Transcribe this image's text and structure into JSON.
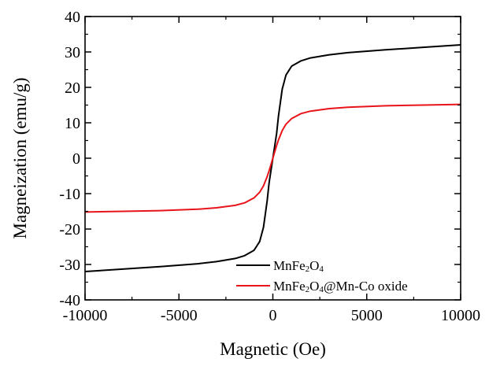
{
  "chart_data": {
    "type": "line",
    "xlabel": "Magnetic (Oe)",
    "ylabel": "Magneization (emu/g)",
    "xlim": [
      -10000,
      10000
    ],
    "ylim": [
      -40,
      40
    ],
    "x_ticks": [
      -10000,
      -5000,
      0,
      5000,
      10000
    ],
    "y_ticks": [
      -40,
      -30,
      -20,
      -10,
      0,
      10,
      20,
      30,
      40
    ],
    "x_tick_labels": [
      "-10000",
      "-5000",
      "0",
      "5000",
      "10000"
    ],
    "y_tick_labels": [
      "-40",
      "-30",
      "-20",
      "-10",
      "0",
      "10",
      "20",
      "30",
      "40"
    ],
    "grid": false,
    "legend_position": "bottom-right",
    "series": [
      {
        "name": "MnFe2O4",
        "legend_parts": [
          {
            "text": "MnFe",
            "sub": false
          },
          {
            "text": "2",
            "sub": true
          },
          {
            "text": "O",
            "sub": false
          },
          {
            "text": "4",
            "sub": true
          }
        ],
        "color": "#000000",
        "x": [
          -10000,
          -8000,
          -6000,
          -4000,
          -3000,
          -2000,
          -1500,
          -1000,
          -700,
          -500,
          -300,
          -200,
          -100,
          0,
          100,
          200,
          300,
          500,
          700,
          1000,
          1500,
          2000,
          3000,
          4000,
          6000,
          8000,
          10000
        ],
        "y": [
          -32,
          -31.3,
          -30.6,
          -29.8,
          -29.2,
          -28.3,
          -27.5,
          -26,
          -23.5,
          -19.5,
          -12,
          -7,
          -3.5,
          0,
          3.5,
          7,
          12,
          19.5,
          23.5,
          26,
          27.5,
          28.3,
          29.2,
          29.8,
          30.6,
          31.3,
          32
        ]
      },
      {
        "name": "MnFe2O4@Mn-Co oxide",
        "legend_parts": [
          {
            "text": "MnFe",
            "sub": false
          },
          {
            "text": "2",
            "sub": true
          },
          {
            "text": "O",
            "sub": false
          },
          {
            "text": "4",
            "sub": true
          },
          {
            "text": "@Mn-Co oxide",
            "sub": false
          }
        ],
        "color": "#e8141a",
        "x": [
          -10000,
          -8000,
          -6000,
          -4000,
          -3000,
          -2000,
          -1500,
          -1000,
          -700,
          -500,
          -300,
          -200,
          -100,
          0,
          100,
          200,
          300,
          500,
          700,
          1000,
          1500,
          2000,
          3000,
          4000,
          6000,
          8000,
          10000
        ],
        "y": [
          -15.2,
          -15.0,
          -14.8,
          -14.4,
          -14.0,
          -13.3,
          -12.6,
          -11.2,
          -9.6,
          -7.8,
          -5.2,
          -3.6,
          -1.8,
          0,
          1.8,
          3.6,
          5.2,
          7.8,
          9.6,
          11.2,
          12.6,
          13.3,
          14.0,
          14.4,
          14.8,
          15.0,
          15.2
        ]
      }
    ]
  }
}
